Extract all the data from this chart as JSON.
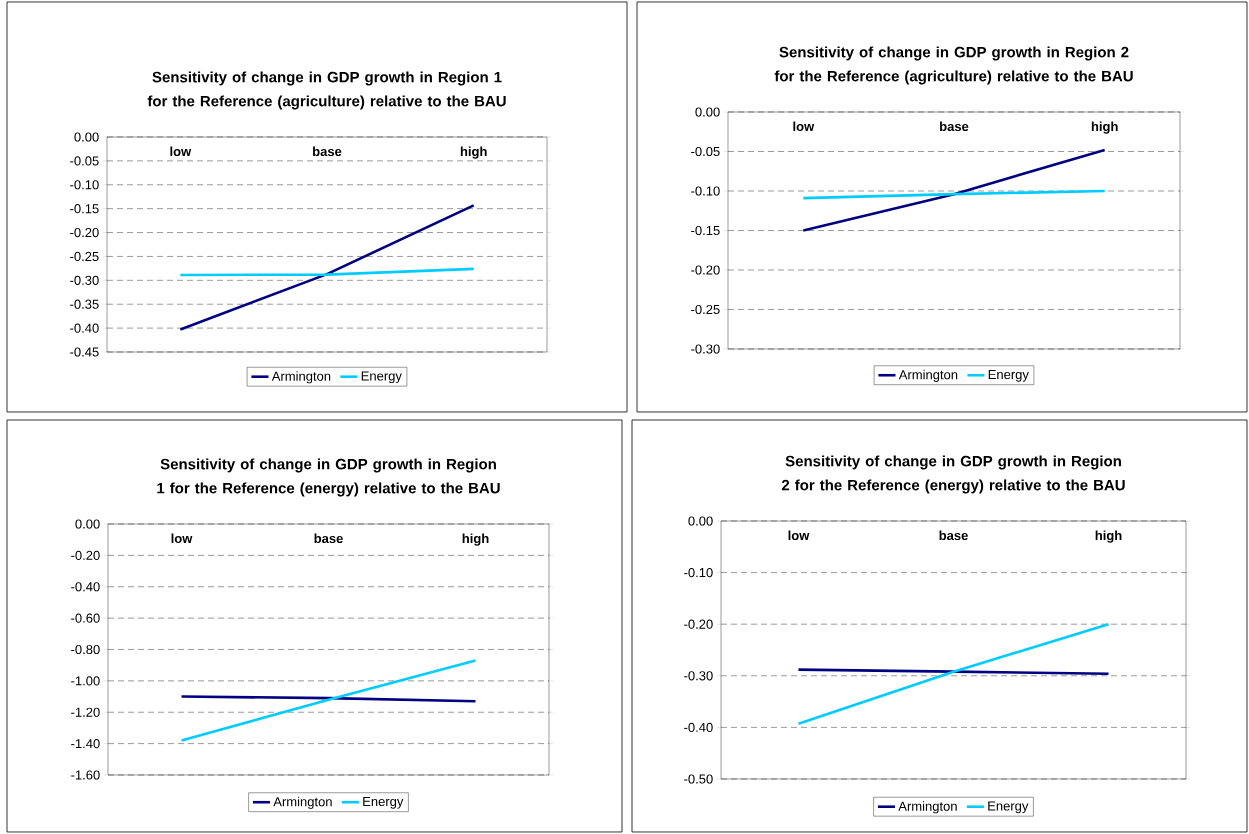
{
  "chart_data": [
    {
      "type": "line",
      "title": "Sensitivity of change in GDP growth in Region 1 for the Reference (agriculture) relative to the BAU",
      "categories": [
        "low",
        "base",
        "high"
      ],
      "series": [
        {
          "name": "Armington",
          "color": "#000080",
          "values": [
            -0.403,
            -0.287,
            -0.143
          ]
        },
        {
          "name": "Energy",
          "color": "#00ccff",
          "values": [
            -0.289,
            -0.288,
            -0.276
          ]
        }
      ],
      "ylim": [
        -0.45,
        0
      ],
      "yticks": [
        {
          "value": 0,
          "label": "0.00"
        },
        {
          "value": -0.05,
          "label": "-0.05"
        },
        {
          "value": -0.1,
          "label": "-0.10"
        },
        {
          "value": -0.15,
          "label": "-0.15"
        },
        {
          "value": -0.2,
          "label": "-0.20"
        },
        {
          "value": -0.25,
          "label": "-0.25"
        },
        {
          "value": -0.3,
          "label": "-0.30"
        },
        {
          "value": -0.35,
          "label": "-0.35"
        },
        {
          "value": -0.4,
          "label": "-0.40"
        },
        {
          "value": -0.45,
          "label": "-0.45"
        }
      ],
      "grid": "y",
      "legend": "bottom",
      "marker": "none",
      "line_style": "solid"
    },
    {
      "type": "line",
      "title": "Sensitivity of change in GDP growth in Region 2 for the Reference (agriculture) relative to the BAU",
      "categories": [
        "low",
        "base",
        "high"
      ],
      "series": [
        {
          "name": "Armington",
          "color": "#000080",
          "values": [
            -0.15,
            -0.104,
            -0.048
          ]
        },
        {
          "name": "Energy",
          "color": "#00ccff",
          "values": [
            -0.109,
            -0.104,
            -0.1
          ]
        }
      ],
      "ylim": [
        -0.3,
        0
      ],
      "yticks": [
        {
          "value": 0,
          "label": "0.00"
        },
        {
          "value": -0.05,
          "label": "-0.05"
        },
        {
          "value": -0.1,
          "label": "-0.10"
        },
        {
          "value": -0.15,
          "label": "-0.15"
        },
        {
          "value": -0.2,
          "label": "-0.20"
        },
        {
          "value": -0.25,
          "label": "-0.25"
        },
        {
          "value": -0.3,
          "label": "-0.30"
        }
      ],
      "grid": "y",
      "legend": "bottom",
      "marker": "none",
      "line_style": "solid"
    },
    {
      "type": "line",
      "title": "Sensitivity of change in GDP growth in Region 1 for the Reference (energy) relative to the BAU",
      "categories": [
        "low",
        "base",
        "high"
      ],
      "series": [
        {
          "name": "Armington",
          "color": "#000080",
          "values": [
            -1.1,
            -1.11,
            -1.13
          ]
        },
        {
          "name": "Energy",
          "color": "#00ccff",
          "values": [
            -1.38,
            -1.12,
            -0.87
          ]
        }
      ],
      "ylim": [
        -1.6,
        0
      ],
      "yticks": [
        {
          "value": 0,
          "label": "0.00"
        },
        {
          "value": -0.2,
          "label": "-0.20"
        },
        {
          "value": -0.4,
          "label": "-0.40"
        },
        {
          "value": -0.6,
          "label": "-0.60"
        },
        {
          "value": -0.8,
          "label": "-0.80"
        },
        {
          "value": -1.0,
          "label": "-1.00"
        },
        {
          "value": -1.2,
          "label": "-1.20"
        },
        {
          "value": -1.4,
          "label": "-1.40"
        },
        {
          "value": -1.6,
          "label": "-1.60"
        }
      ],
      "grid": "y",
      "legend": "bottom",
      "marker": "none",
      "line_style": "solid"
    },
    {
      "type": "line",
      "title": "Sensitivity of change in GDP growth in Region 2 for the Reference (energy) relative to the BAU",
      "categories": [
        "low",
        "base",
        "high"
      ],
      "series": [
        {
          "name": "Armington",
          "color": "#000080",
          "values": [
            -0.288,
            -0.292,
            -0.296
          ]
        },
        {
          "name": "Energy",
          "color": "#00ccff",
          "values": [
            -0.393,
            -0.292,
            -0.2
          ]
        }
      ],
      "ylim": [
        -0.5,
        0
      ],
      "yticks": [
        {
          "value": 0,
          "label": "0.00"
        },
        {
          "value": -0.1,
          "label": "-0.10"
        },
        {
          "value": -0.2,
          "label": "-0.20"
        },
        {
          "value": -0.3,
          "label": "-0.30"
        },
        {
          "value": -0.4,
          "label": "-0.40"
        },
        {
          "value": -0.5,
          "label": "-0.50"
        }
      ],
      "grid": "y",
      "legend": "bottom",
      "marker": "none",
      "line_style": "solid"
    }
  ]
}
